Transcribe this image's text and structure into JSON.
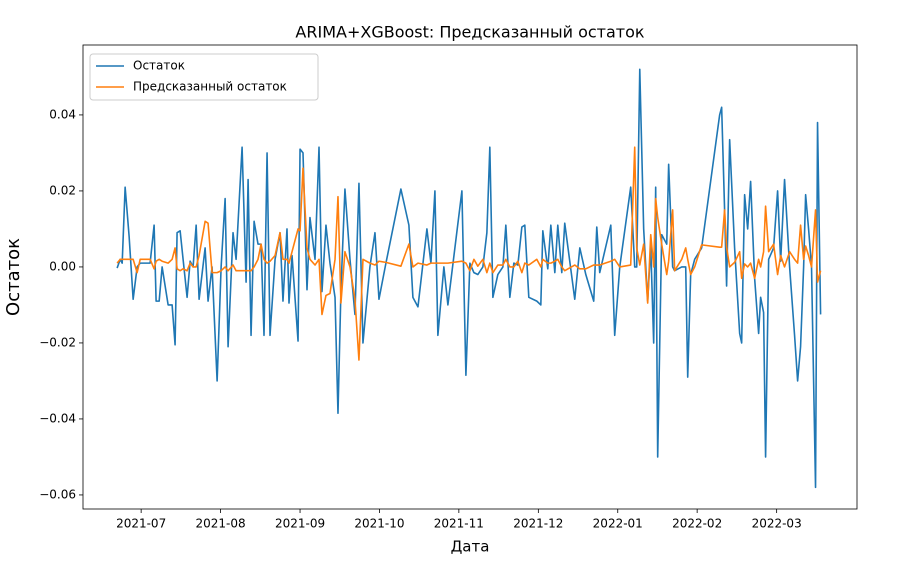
{
  "chart_data": {
    "type": "line",
    "title": "ARIMA+XGBoost: Предсказанный остаток",
    "xlabel": "Дата",
    "ylabel": "Остаток",
    "x": [
      2021.4748,
      2021.478,
      2021.4801,
      2021.4832,
      2021.4874,
      2021.4916,
      2021.4958,
      2021.499,
      2021.5094,
      2021.5136,
      2021.5157,
      2021.5189,
      2021.522,
      2021.5283,
      2021.5325,
      2021.5356,
      2021.5377,
      2021.5409,
      2021.544,
      2021.5482,
      2021.5514,
      2021.5545,
      2021.5577,
      2021.5608,
      2021.5671,
      2021.5702,
      2021.5744,
      2021.5797,
      2021.5839,
      2021.5881,
      2021.5912,
      2021.5964,
      2021.5996,
      2021.6059,
      2021.6101,
      2021.6122,
      2021.6153,
      2021.6185,
      2021.6226,
      2021.6258,
      2021.6289,
      2021.6321,
      2021.6352,
      2021.6405,
      2021.6457,
      2021.6488,
      2021.653,
      2021.6551,
      2021.6583,
      2021.6646,
      2021.6667,
      2021.6698,
      2021.674,
      2021.6771,
      2021.6824,
      2021.6866,
      2021.6897,
      2021.6939,
      2021.6981,
      2021.7034,
      2021.7065,
      2021.7096,
      2021.7138,
      2021.7191,
      2021.7243,
      2021.7285,
      2021.7327,
      2021.74,
      2021.7453,
      2021.7495,
      2021.7568,
      2021.7725,
      2021.7809,
      2021.7851,
      2021.7904,
      2021.7998,
      2021.804,
      2021.8082,
      2021.8113,
      2021.8176,
      2021.8218,
      2021.8365,
      2021.8407,
      2021.8449,
      2021.8491,
      2021.8532,
      2021.8585,
      2021.8627,
      2021.8658,
      2021.869,
      2021.8742,
      2021.8795,
      2021.8826,
      2021.8868,
      2021.891,
      2021.8952,
      2021.8994,
      2021.9025,
      2021.9067,
      2021.9151,
      2021.9193,
      2021.9214,
      2021.9266,
      2021.9298,
      2021.934,
      2021.9371,
      2021.9413,
      2021.9444,
      2021.9549,
      2021.9602,
      2021.9665,
      2021.9748,
      2021.978,
      2021.9811,
      2021.9927,
      2021.9968,
      2022.0021,
      2022.0136,
      2022.0178,
      2022.0199,
      2022.0231,
      2022.0272,
      2022.0314,
      2022.0346,
      2022.0377,
      2022.0398,
      2022.0419,
      2022.0461,
      2022.0514,
      2022.0534,
      2022.0576,
      2022.0597,
      2022.0671,
      2022.0713,
      2022.0734,
      2022.0765,
      2022.0807,
      2022.088,
      2022.1069,
      2022.109,
      2022.1121,
      2022.1142,
      2022.1174,
      2022.1226,
      2022.1279,
      2022.13,
      2022.1331,
      2022.1363,
      2022.1394,
      2022.1436,
      2022.1478,
      2022.1499,
      2022.153,
      2022.1551,
      2022.1583,
      2022.1635,
      2022.1677,
      2022.1709,
      2022.175,
      2022.1803,
      2022.1855,
      2022.1887,
      2022.1918,
      2022.195,
      2022.1971,
      2022.2002,
      2022.2033,
      2022.2075,
      2022.2096,
      2022.2128
    ],
    "series": [
      {
        "name": "Остаток",
        "color": "#1f77b4",
        "values": [
          -0.0003,
          0.002,
          0.001,
          0.021,
          0.008,
          -0.0085,
          0.0,
          0.001,
          0.001,
          0.011,
          -0.009,
          -0.009,
          0.0,
          -0.01,
          -0.01,
          -0.0205,
          0.009,
          0.0095,
          0.002,
          -0.008,
          0.0015,
          0.0,
          0.011,
          -0.0085,
          0.005,
          -0.009,
          0.0,
          -0.03,
          0.0,
          0.018,
          -0.021,
          0.009,
          0.002,
          0.0315,
          -0.004,
          0.023,
          -0.018,
          0.012,
          0.006,
          0.006,
          -0.018,
          0.03,
          -0.018,
          0.002,
          0.009,
          -0.009,
          0.01,
          -0.0095,
          0.003,
          -0.0195,
          0.031,
          0.03,
          -0.006,
          0.013,
          0.002,
          0.0315,
          -0.0065,
          0.011,
          0.001,
          -0.008,
          -0.0385,
          -0.006,
          0.0205,
          0.002,
          -0.0125,
          0.022,
          -0.02,
          0.0,
          0.009,
          -0.0085,
          0.001,
          0.0205,
          0.011,
          -0.008,
          -0.0105,
          0.01,
          0.001,
          0.02,
          -0.018,
          0.0,
          -0.01,
          0.02,
          -0.0285,
          0.001,
          -0.0015,
          -0.002,
          0.0,
          0.009,
          0.0315,
          -0.008,
          -0.002,
          0.0,
          0.011,
          -0.008,
          0.001,
          0.0005,
          0.0105,
          0.011,
          -0.008,
          -0.009,
          -0.01,
          0.0095,
          -0.0005,
          0.011,
          -0.0015,
          0.011,
          -0.0015,
          0.0115,
          -0.0085,
          0.005,
          -0.002,
          -0.009,
          0.0105,
          -0.0015,
          0.011,
          -0.018,
          0.0,
          0.021,
          0.0,
          0.0,
          0.052,
          0.01,
          -0.009,
          0.0055,
          -0.02,
          0.021,
          -0.05,
          0.0085,
          0.006,
          0.027,
          0.0,
          -0.001,
          0.0,
          0.0,
          -0.029,
          -0.002,
          0.002,
          0.005,
          0.04,
          0.042,
          0.015,
          -0.005,
          0.0335,
          0.005,
          -0.0175,
          -0.02,
          0.019,
          0.01,
          0.0225,
          -0.003,
          -0.0175,
          -0.008,
          -0.012,
          -0.05,
          0.002,
          0.005,
          0.02,
          0.0015,
          0.023,
          0.0,
          -0.018,
          -0.03,
          -0.021,
          0.0,
          0.019,
          0.01,
          0.0,
          -0.058,
          0.038,
          -0.0125
        ]
      },
      {
        "name": "Предсказанный остаток",
        "color": "#ff7f0e",
        "values": [
          0.001,
          0.002,
          0.002,
          0.002,
          0.002,
          0.002,
          -0.0015,
          0.002,
          0.002,
          -0.0005,
          0.0015,
          0.002,
          0.0015,
          0.001,
          0.002,
          0.005,
          -0.0005,
          -0.001,
          -0.0005,
          -0.001,
          0.001,
          0.0,
          0.0,
          0.003,
          0.012,
          0.0115,
          -0.0015,
          -0.0015,
          -0.001,
          0.0,
          -0.001,
          0.0005,
          -0.001,
          -0.001,
          -0.001,
          -0.001,
          -0.001,
          0.0,
          0.002,
          0.006,
          0.002,
          0.001,
          0.0015,
          0.003,
          0.009,
          0.002,
          0.002,
          0.001,
          0.004,
          0.01,
          0.0095,
          0.026,
          0.005,
          0.002,
          0.0005,
          0.002,
          -0.0125,
          -0.0075,
          -0.007,
          0.002,
          0.0185,
          -0.0095,
          0.004,
          0.0,
          -0.0085,
          -0.0245,
          0.002,
          0.001,
          0.0005,
          0.0015,
          0.0012,
          0.0002,
          0.006,
          0.0,
          0.001,
          0.0005,
          0.001,
          0.001,
          0.001,
          0.001,
          0.001,
          0.0015,
          0.001,
          -0.001,
          0.002,
          0.0002,
          0.002,
          -0.0015,
          0.001,
          -0.0015,
          0.0005,
          0.0005,
          0.002,
          0.0,
          0.0,
          0.0015,
          -0.0015,
          0.001,
          0.0005,
          0.002,
          0.0,
          0.002,
          0.001,
          0.001,
          0.0015,
          0.002,
          0.0,
          -0.001,
          0.0005,
          -0.0005,
          -0.0005,
          0.0005,
          0.0005,
          0.0005,
          0.0015,
          0.002,
          0.0,
          0.0005,
          0.0315,
          0.005,
          0.0005,
          0.006,
          -0.0095,
          0.0085,
          0.0,
          0.018,
          0.013,
          0.006,
          -0.002,
          0.0015,
          0.015,
          -0.001,
          0.002,
          0.005,
          0.002,
          -0.002,
          0.0,
          0.0058,
          0.0052,
          0.0052,
          0.015,
          0.0052,
          0.0,
          0.0012,
          0.004,
          -0.003,
          0.0008,
          0.0,
          0.001,
          -0.003,
          0.002,
          0.0,
          0.004,
          0.016,
          0.004,
          0.006,
          -0.002,
          0.003,
          0.0,
          0.004,
          0.002,
          0.001,
          0.011,
          0.002,
          0.0055,
          0.003,
          0.0,
          0.015,
          -0.004,
          -0.001
        ]
      }
    ],
    "xlim": [
      2021.439,
      2022.251
    ],
    "xticks": [
      {
        "value": 2021.5,
        "label": "2021-07"
      },
      {
        "value": 2021.5833,
        "label": "2021-08"
      },
      {
        "value": 2021.6667,
        "label": "2021-09"
      },
      {
        "value": 2021.75,
        "label": "2021-10"
      },
      {
        "value": 2021.8333,
        "label": "2021-11"
      },
      {
        "value": 2021.9167,
        "label": "2021-12"
      },
      {
        "value": 2022,
        "label": "2022-01"
      },
      {
        "value": 2022.0833,
        "label": "2022-02"
      },
      {
        "value": 2022.1667,
        "label": "2022-03"
      }
    ],
    "ylim": [
      -0.0637,
      0.0584
    ],
    "yticks": [
      {
        "value": -0.06,
        "label": "−0.06"
      },
      {
        "value": -0.04,
        "label": "−0.04"
      },
      {
        "value": -0.02,
        "label": "−0.02"
      },
      {
        "value": 0,
        "label": "0.00"
      },
      0.02,
      0.04
    ],
    "legend": "upper left",
    "grid": false
  }
}
